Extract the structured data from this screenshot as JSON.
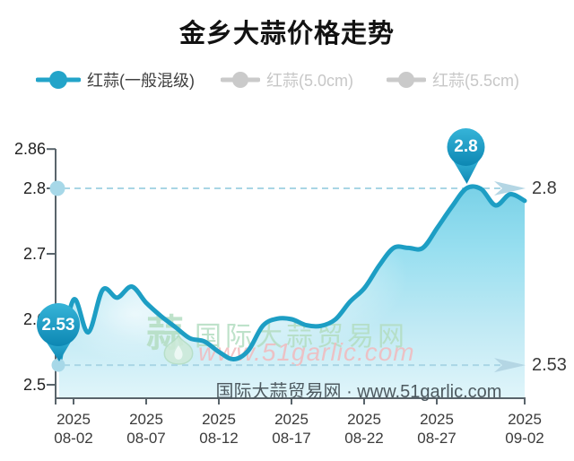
{
  "title": "金乡大蒜价格走势",
  "legend": {
    "items": [
      {
        "key": "red-garlic-mixed",
        "label": "红蒜(一般混级)",
        "color": "#23a4c9",
        "text_color": "#404040",
        "active": true
      },
      {
        "key": "red-garlic-5-0cm",
        "label": "红蒜(5.0cm)",
        "color": "#cacaca",
        "text_color": "#c7c7c7",
        "active": false
      },
      {
        "key": "red-garlic-5-5cm",
        "label": "红蒜(5.5cm)",
        "color": "#cacaca",
        "text_color": "#c7c7c7",
        "active": false
      }
    ]
  },
  "chart_data": {
    "type": "area",
    "title": "金乡大蒜价格走势",
    "year": "2025",
    "series": [
      {
        "name": "红蒜(一般混级)",
        "dates": [
          "08-01",
          "08-02",
          "08-03",
          "08-04",
          "08-05",
          "08-06",
          "08-07",
          "08-08",
          "08-09",
          "08-10",
          "08-11",
          "08-12",
          "08-13",
          "08-14",
          "08-15",
          "08-16",
          "08-17",
          "08-18",
          "08-19",
          "08-20",
          "08-21",
          "08-22",
          "08-23",
          "08-24",
          "08-25",
          "08-26",
          "08-27",
          "08-28",
          "08-29",
          "08-30",
          "08-31",
          "09-01",
          "09-02"
        ],
        "values": [
          2.53,
          2.63,
          2.58,
          2.645,
          2.633,
          2.65,
          2.625,
          2.605,
          2.588,
          2.571,
          2.566,
          2.55,
          2.539,
          2.552,
          2.59,
          2.601,
          2.6,
          2.591,
          2.59,
          2.6,
          2.627,
          2.648,
          2.682,
          2.709,
          2.709,
          2.709,
          2.74,
          2.772,
          2.8,
          2.799,
          2.774,
          2.791,
          2.781
        ]
      }
    ],
    "y_ticks": [
      2.86,
      2.8,
      2.7,
      2.6,
      2.5
    ],
    "y_tick_labels": [
      "2.86",
      "2.8",
      "2.7",
      "2.6",
      "2.5"
    ],
    "ylim": [
      2.5,
      2.86
    ],
    "x_tick_labels": [
      {
        "year": "2025",
        "date": "08-02"
      },
      {
        "year": "2025",
        "date": "08-07"
      },
      {
        "year": "2025",
        "date": "08-12"
      },
      {
        "year": "2025",
        "date": "08-17"
      },
      {
        "year": "2025",
        "date": "08-22"
      },
      {
        "year": "2025",
        "date": "08-27"
      },
      {
        "year": "2025",
        "date": "09-02"
      }
    ],
    "annotations": {
      "start": {
        "label": "2.53",
        "value": 2.53,
        "date": "2025-08-01"
      },
      "peak": {
        "label": "2.8",
        "value": 2.8,
        "date": "2025-08-29"
      }
    },
    "reference_lines": [
      {
        "value": 2.8,
        "right_label": "2.8"
      },
      {
        "value": 2.53,
        "right_label": "2.53"
      }
    ],
    "legend_position": "top",
    "grid": false,
    "colors": {
      "line": "#1d9ec4",
      "area_top": "#79d1e7",
      "area_bottom": "#e0f5fa",
      "dashed": "#a9d6e5",
      "dot": "#a7d8e8",
      "balloon": "#1899c3",
      "axis": "#59646b",
      "arrow": "#b4d6e4",
      "inactive_legend": "#cacaca"
    }
  },
  "watermark": {
    "logo_char": "蒜",
    "site_name": "国际大蒜贸易网",
    "site_url": "www.51garlic.com",
    "footer": "国际大蒜贸易网 · www.51garlic.com"
  }
}
